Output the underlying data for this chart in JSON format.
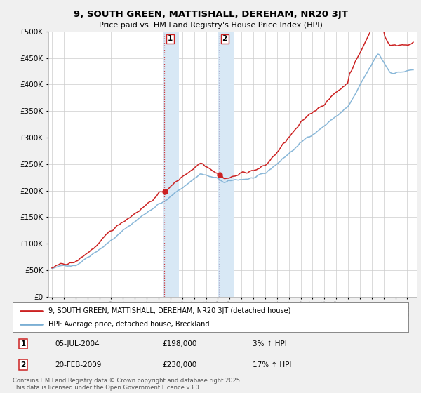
{
  "title": "9, SOUTH GREEN, MATTISHALL, DEREHAM, NR20 3JT",
  "subtitle": "Price paid vs. HM Land Registry's House Price Index (HPI)",
  "legend_line1": "9, SOUTH GREEN, MATTISHALL, DEREHAM, NR20 3JT (detached house)",
  "legend_line2": "HPI: Average price, detached house, Breckland",
  "sale1_label": "1",
  "sale1_date": "05-JUL-2004",
  "sale1_price": "£198,000",
  "sale1_hpi": "3% ↑ HPI",
  "sale2_label": "2",
  "sale2_date": "20-FEB-2009",
  "sale2_price": "£230,000",
  "sale2_hpi": "17% ↑ HPI",
  "footer": "Contains HM Land Registry data © Crown copyright and database right 2025.\nThis data is licensed under the Open Government Licence v3.0.",
  "sale1_year": 2004.5,
  "sale2_year": 2009.12,
  "sale1_value": 198000,
  "sale2_value": 230000,
  "hpi_color": "#7bafd4",
  "price_color": "#cc2222",
  "background_color": "#f0f0f0",
  "plot_bg_color": "#ffffff",
  "sale_marker_color": "#cc2222",
  "sale_highlight_color": "#d8e8f5",
  "ylim_min": 0,
  "ylim_max": 500000,
  "xmin": 1994.7,
  "xmax": 2025.8
}
